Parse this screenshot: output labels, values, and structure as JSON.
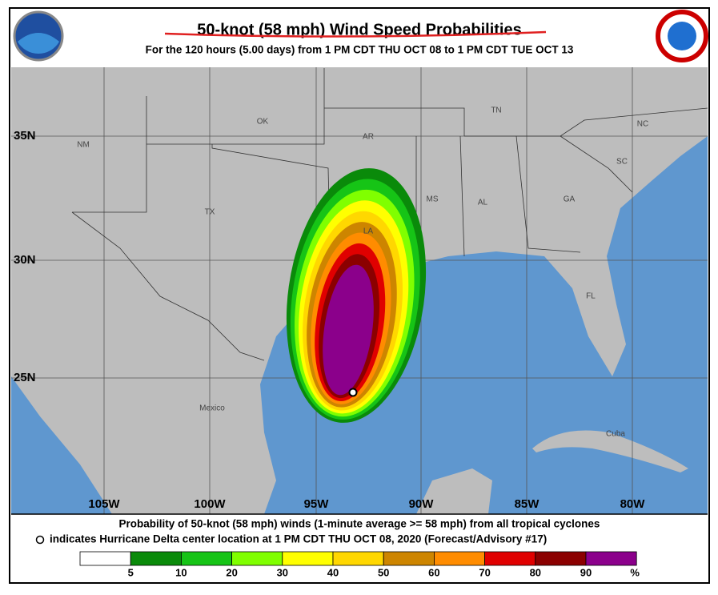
{
  "header": {
    "title": "50-knot (58 mph) Wind Speed Probabilities",
    "subtitle": "For the 120 hours (5.00 days) from 1 PM CDT THU OCT 08 to 1 PM CDT TUE OCT 13"
  },
  "map": {
    "region_labels": [
      "NM",
      "OK",
      "AR",
      "TN",
      "NC",
      "TX",
      "MS",
      "AL",
      "GA",
      "SC",
      "LA",
      "FL",
      "Mexico",
      "Cuba"
    ],
    "lat_labels": [
      "35N",
      "30N",
      "25N"
    ],
    "lon_labels": [
      "105W",
      "100W",
      "95W",
      "90W",
      "85W",
      "80W"
    ]
  },
  "footer": {
    "line1": "Probability of 50-knot (58 mph) winds (1-minute average >= 58 mph) from all tropical cyclones",
    "line2": "indicates Hurricane Delta center location at 1 PM CDT THU OCT 08, 2020 (Forecast/Advisory #17)"
  },
  "legend": {
    "colors": [
      "#ffffff",
      "#0a8a0a",
      "#16c416",
      "#80ff00",
      "#ffff00",
      "#ffd700",
      "#cd8500",
      "#ff8c00",
      "#e00000",
      "#8b0000",
      "#8b008b"
    ],
    "ticks": [
      5,
      10,
      20,
      30,
      40,
      50,
      60,
      70,
      80,
      90
    ],
    "unit": "%"
  }
}
